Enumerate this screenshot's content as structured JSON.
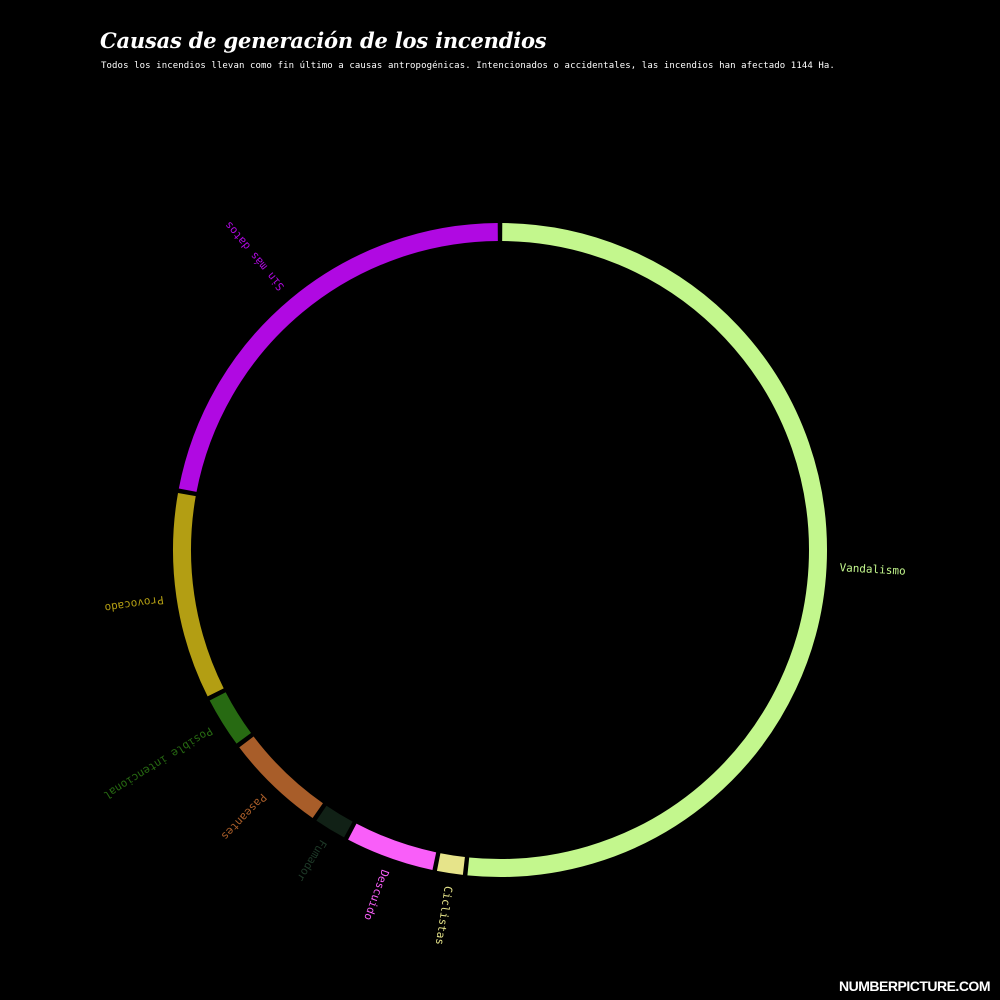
{
  "header": {
    "title": "Causas de generación de los incendios",
    "subtitle": "Todos los incendios llevan como fin último a causas antropogénicas. Intencionados o accidentales, las incendios han afectado 1144 Ha."
  },
  "footer": {
    "brand": "NUMBERPICTURE.COM"
  },
  "chart_data": {
    "type": "pie",
    "style": "ring",
    "total_ha": 1144,
    "categories": [
      "Vandalismo",
      "Ciclistas",
      "Descuido",
      "Fumador",
      "Paseantes",
      "Posible intencional",
      "Provocado",
      "Sin más datos"
    ],
    "values": [
      51.7,
      1.5,
      4.6,
      1.8,
      5.2,
      2.7,
      10.4,
      22.1
    ],
    "value_unit": "% of 1144 Ha (estimated from arc length)",
    "colors": [
      "#c3f78d",
      "#e6e48a",
      "#f95ef9",
      "#112116",
      "#a85d29",
      "#276a12",
      "#b39e13",
      "#b009e2"
    ],
    "start": "top, clockwise",
    "legend": "labels outside ring"
  }
}
